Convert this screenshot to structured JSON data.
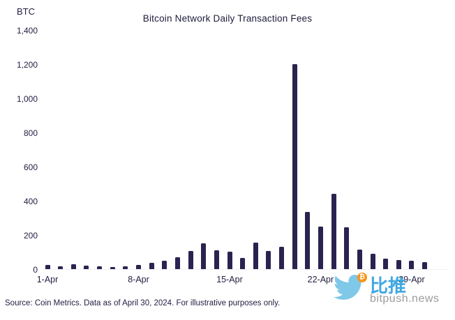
{
  "chart_data": {
    "type": "bar",
    "title": "Bitcoin Network Daily Transaction Fees",
    "unit_label": "BTC",
    "ylabel": "BTC",
    "ylim": [
      0,
      1400
    ],
    "grid": false,
    "legend": "none",
    "bar_color": "#292350",
    "y_ticks": [
      0,
      200,
      400,
      600,
      800,
      1000,
      1200,
      1400
    ],
    "y_tick_labels": [
      "0",
      "200",
      "400",
      "600",
      "800",
      "1,000",
      "1,200",
      "1,400"
    ],
    "x_tick_days": [
      1,
      8,
      15,
      22,
      29
    ],
    "x_tick_labels": [
      "1-Apr",
      "8-Apr",
      "15-Apr",
      "22-Apr",
      "29-Apr"
    ],
    "categories": [
      "1-Apr",
      "2-Apr",
      "3-Apr",
      "4-Apr",
      "5-Apr",
      "6-Apr",
      "7-Apr",
      "8-Apr",
      "9-Apr",
      "10-Apr",
      "11-Apr",
      "12-Apr",
      "13-Apr",
      "14-Apr",
      "15-Apr",
      "16-Apr",
      "17-Apr",
      "18-Apr",
      "19-Apr",
      "20-Apr",
      "21-Apr",
      "22-Apr",
      "23-Apr",
      "24-Apr",
      "25-Apr",
      "26-Apr",
      "27-Apr",
      "28-Apr",
      "29-Apr",
      "30-Apr"
    ],
    "values": [
      25,
      18,
      28,
      22,
      18,
      14,
      18,
      25,
      35,
      48,
      70,
      105,
      150,
      110,
      100,
      65,
      155,
      105,
      130,
      1200,
      335,
      250,
      440,
      245,
      115,
      90,
      62,
      55,
      48,
      40
    ],
    "source": "Source: Coin Metrics. Data as of April 30, 2024. For illustrative purposes only."
  },
  "watermark": {
    "cn_text": "比推",
    "domain": "bitpush.news",
    "btc_symbol": "₿",
    "bird_color": "#7fc8e8",
    "badge_color": "#f7931a",
    "cn_color": "#41a8e0",
    "domain_color": "#9b9b9b"
  }
}
